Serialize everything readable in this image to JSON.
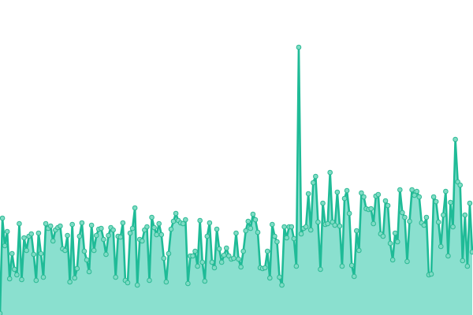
{
  "chart_data": {
    "type": "area",
    "title": "",
    "xlabel": "",
    "ylabel": "",
    "ylim": [
      0,
      100
    ],
    "grid": false,
    "legend": "none",
    "markers": true,
    "colors": {
      "line": "#1fbb97",
      "fill": "#8ae0cf",
      "marker_fill": "#7fdcc5",
      "marker_stroke": "#2cb994"
    },
    "values": [
      0.5,
      30.75,
      22,
      26.5,
      11.5,
      19.5,
      14.5,
      12.75,
      29,
      11.25,
      24.5,
      20.5,
      25,
      25.75,
      19.25,
      11,
      26,
      19.5,
      12,
      29,
      27.5,
      28.25,
      23.5,
      27,
      27.75,
      28.25,
      21,
      20.5,
      25.25,
      10.5,
      28.75,
      11.75,
      14.75,
      25,
      29.25,
      20.25,
      17.5,
      13.75,
      28.5,
      20.5,
      25.25,
      27.25,
      27.5,
      24,
      19.25,
      25.25,
      27.75,
      27,
      12,
      25,
      24.75,
      29.25,
      11,
      10.25,
      26,
      27.5,
      34,
      9.5,
      24,
      23.5,
      27,
      28,
      11,
      31,
      27.75,
      25.5,
      29,
      25.5,
      18,
      10.5,
      19.5,
      27.25,
      29.75,
      32.25,
      30,
      29.25,
      29,
      30.25,
      10,
      18.75,
      18.75,
      20.25,
      15.5,
      30,
      16.75,
      10.75,
      25,
      29.25,
      16.75,
      15,
      27.25,
      21,
      16.75,
      19,
      21.25,
      18.75,
      17.75,
      18,
      26,
      17.75,
      15.25,
      20.25,
      26.75,
      29.75,
      27.5,
      32,
      30.25,
      26.25,
      15,
      14.75,
      15,
      20.25,
      11.75,
      28.75,
      25,
      23.25,
      12,
      9.5,
      28,
      24.5,
      28,
      28,
      24.25,
      15.5,
      85,
      25.75,
      27.5,
      28,
      38.5,
      27,
      42,
      44,
      29.5,
      14.5,
      35.5,
      28.75,
      29,
      45.25,
      29.5,
      28.5,
      39,
      28.25,
      15.5,
      37,
      39.5,
      32.25,
      15.75,
      12.25,
      26.75,
      20.5,
      38.75,
      37.5,
      33.75,
      33.5,
      33.75,
      29,
      37.75,
      38.25,
      25.75,
      25,
      36.25,
      34.75,
      22.75,
      17.5,
      26,
      23.25,
      39.75,
      32.5,
      31,
      17,
      29.75,
      39.75,
      38,
      39.25,
      37.5,
      29.25,
      28.5,
      31,
      12.75,
      13,
      37.5,
      36,
      29.5,
      21.75,
      31.75,
      39.25,
      18.75,
      35.75,
      28,
      55.75,
      42.25,
      41.25,
      17.25,
      31.75,
      15.5,
      35.5,
      20
    ]
  }
}
